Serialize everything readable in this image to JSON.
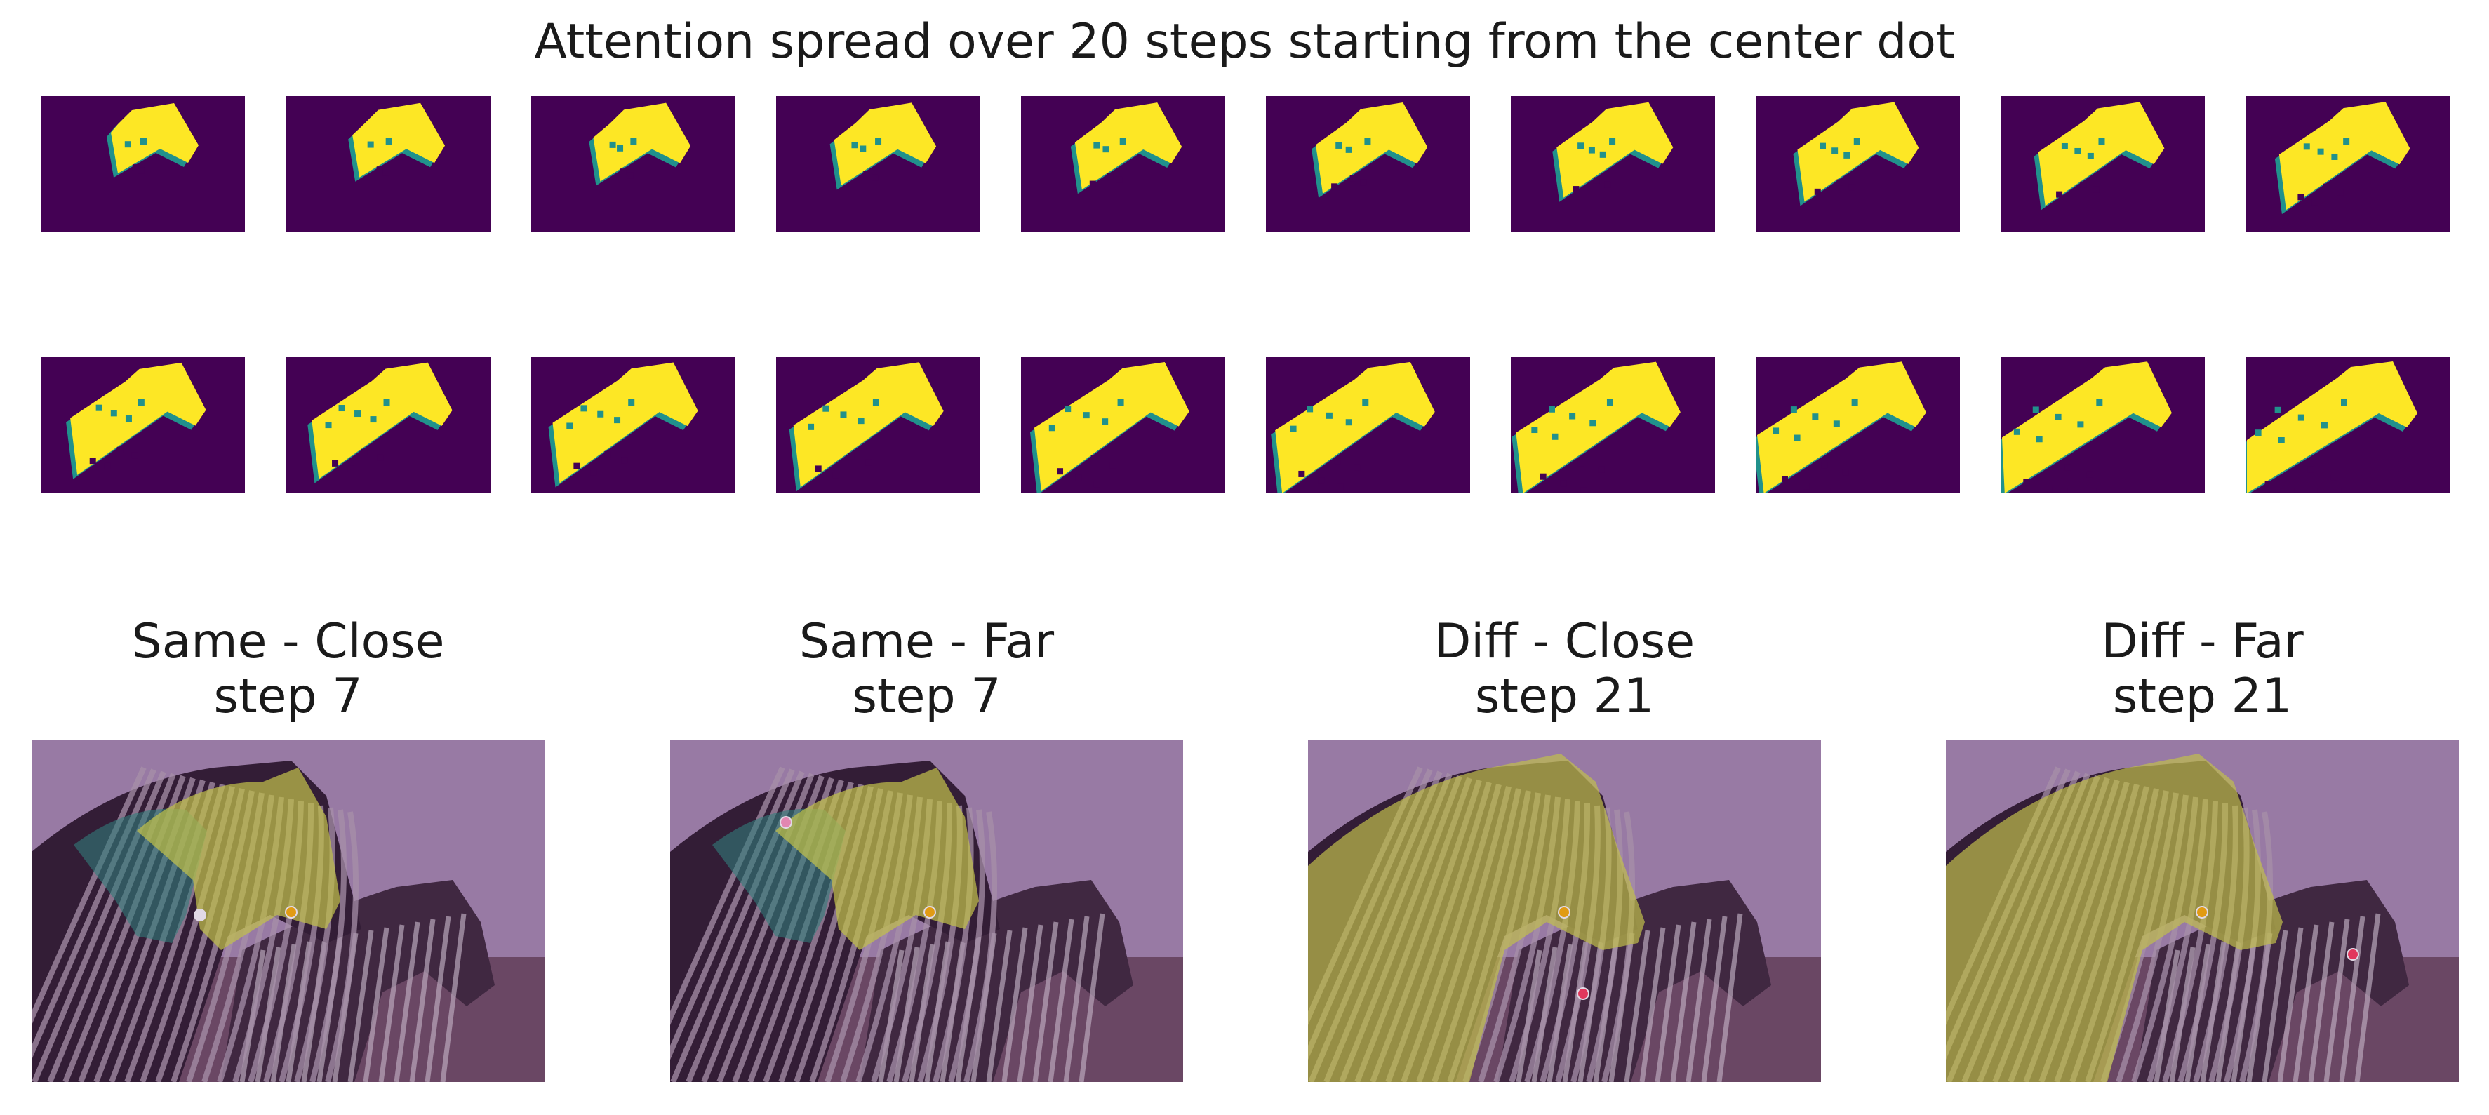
{
  "figure": {
    "title": "Attention spread over 20 steps starting from the center dot"
  },
  "attention_steps": {
    "rows": 2,
    "steps_per_row": 10,
    "colormap": "viridis",
    "background_color": "#440154",
    "active_color": "#fde725",
    "frontier_color": "#21918c",
    "coverage": [
      0.05,
      0.07,
      0.09,
      0.1,
      0.11,
      0.13,
      0.15,
      0.18,
      0.2,
      0.22,
      0.28,
      0.32,
      0.37,
      0.41,
      0.43,
      0.45,
      0.46,
      0.46,
      0.46,
      0.46
    ]
  },
  "panels": [
    {
      "title_line1": "Same - Close",
      "title_line2": "step 7",
      "overlay": "partial",
      "dots": [
        "gold",
        "white"
      ]
    },
    {
      "title_line1": "Same - Far",
      "title_line2": "step 7",
      "overlay": "partial",
      "dots": [
        "gold",
        "pink"
      ]
    },
    {
      "title_line1": "Diff - Close",
      "title_line2": "step 21",
      "overlay": "full",
      "dots": [
        "gold",
        "red"
      ]
    },
    {
      "title_line1": "Diff - Far",
      "title_line2": "step 21",
      "overlay": "full",
      "dots": [
        "gold",
        "red"
      ]
    }
  ],
  "colors": {
    "sky_tint": "#a68bb0",
    "ground_tint": "#6e4e62",
    "overlay_yellow": "#d8e044",
    "overlay_teal": "#2a8f7f",
    "dot_gold": "#ffb400",
    "dot_red": "#ff3a5a",
    "dot_white": "#ffffff",
    "dot_pink": "#ff9bc0"
  }
}
